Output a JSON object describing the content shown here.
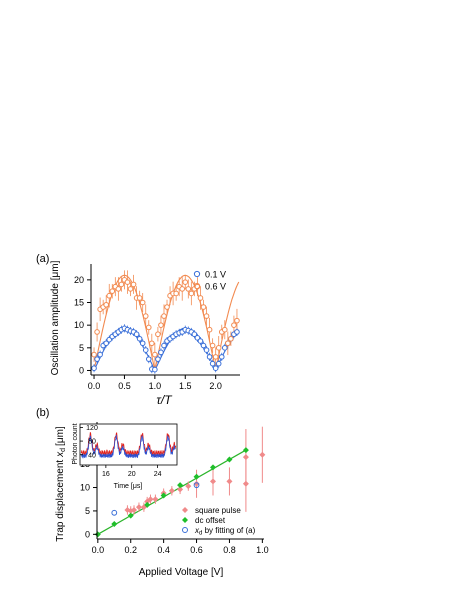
{
  "colors": {
    "blue": "#3a6fd8",
    "orange": "#f28a50",
    "pink": "#f08a8a",
    "green": "#1fbf2a",
    "green_line": "#2bb52b",
    "inset_red": "#e0201a",
    "inset_blue": "#2c4fd0"
  },
  "chart_data": [
    {
      "type": "scatter",
      "panel_label": "(a)",
      "xlabel": "τ/T",
      "ylabel": "Oscillation amplitude [μm]",
      "xlim": [
        -0.05,
        2.4
      ],
      "ylim": [
        -1,
        23.5
      ],
      "xticks": [
        "0.0",
        "0.5",
        "1.0",
        "1.5",
        "2.0"
      ],
      "yticks": [
        "0",
        "5",
        "10",
        "15",
        "20"
      ],
      "legend_position": "top-right",
      "series": [
        {
          "name": "0.1 V",
          "marker": "open-circle",
          "color": "#3a6fd8",
          "x": [
            0.0,
            0.05,
            0.1,
            0.15,
            0.2,
            0.25,
            0.3,
            0.35,
            0.4,
            0.45,
            0.5,
            0.55,
            0.6,
            0.65,
            0.7,
            0.75,
            0.8,
            0.85,
            0.9,
            0.95,
            1.0,
            1.05,
            1.1,
            1.15,
            1.2,
            1.25,
            1.3,
            1.35,
            1.4,
            1.45,
            1.5,
            1.55,
            1.6,
            1.65,
            1.7,
            1.75,
            1.8,
            1.85,
            1.9,
            1.95,
            2.0,
            2.05,
            2.1,
            2.15,
            2.2,
            2.25,
            2.3,
            2.35
          ],
          "y": [
            0.5,
            2.5,
            3.5,
            5.5,
            6.0,
            6.8,
            7.5,
            8.0,
            8.5,
            9.0,
            9.3,
            9.0,
            8.7,
            8.5,
            8.0,
            7.0,
            6.0,
            4.5,
            2.5,
            0.3,
            0.2,
            2.5,
            4.0,
            5.5,
            6.5,
            7.0,
            7.5,
            8.0,
            8.3,
            8.5,
            9.0,
            8.8,
            8.5,
            8.0,
            7.2,
            6.5,
            5.5,
            4.5,
            3.0,
            1.5,
            0.5,
            1.5,
            3.0,
            5.0,
            6.0,
            7.0,
            8.0,
            8.5
          ]
        },
        {
          "name": "0.6 V",
          "marker": "open-circle",
          "color": "#f28a50",
          "x": [
            0.0,
            0.05,
            0.1,
            0.15,
            0.2,
            0.25,
            0.3,
            0.35,
            0.4,
            0.45,
            0.5,
            0.55,
            0.6,
            0.65,
            0.7,
            0.75,
            0.8,
            0.85,
            0.9,
            0.95,
            1.0,
            1.05,
            1.1,
            1.15,
            1.2,
            1.25,
            1.3,
            1.35,
            1.4,
            1.45,
            1.5,
            1.55,
            1.6,
            1.65,
            1.7,
            1.75,
            1.8,
            1.85,
            1.9,
            1.95,
            2.0,
            2.05,
            2.1,
            2.15,
            2.2,
            2.25,
            2.3,
            2.35
          ],
          "y": [
            3.5,
            8.5,
            13.5,
            14.0,
            14.5,
            16.5,
            17.5,
            18.5,
            18.0,
            19.0,
            20.0,
            19.5,
            18.0,
            19.0,
            16.0,
            16.0,
            15.0,
            12.0,
            9.5,
            6.0,
            3.5,
            8.0,
            10.0,
            12.0,
            14.0,
            16.5,
            17.0,
            17.0,
            18.5,
            18.0,
            19.5,
            18.0,
            17.0,
            18.0,
            18.5,
            16.0,
            14.0,
            12.0,
            9.0,
            5.5,
            3.0,
            5.0,
            8.5,
            9.0,
            6.0,
            7.0,
            10.0,
            11.0
          ]
        }
      ]
    },
    {
      "type": "scatter",
      "panel_label": "(b)",
      "xlabel": "Applied Voltage [V]",
      "ylabel": "Trap displacement",
      "ylabel_symbol": "x",
      "ylabel_subscript": "d",
      "ylabel_unit": "[μm]",
      "xlim": [
        -0.005,
        1.01
      ],
      "ylim": [
        -1,
        24
      ],
      "xticks": [
        "0.0",
        "0.2",
        "0.4",
        "0.6",
        "0.8",
        "1.0"
      ],
      "yticks": [
        "0",
        "5",
        "10",
        "15",
        "20"
      ],
      "legend_position": "bottom-right",
      "series": [
        {
          "name": "square pulse",
          "marker": "filled-diamond",
          "color": "#f08a8a",
          "x": [
            0.18,
            0.2,
            0.22,
            0.25,
            0.28,
            0.3,
            0.32,
            0.35,
            0.4,
            0.45,
            0.5,
            0.55,
            0.6,
            0.7,
            0.8,
            0.9,
            0.9,
            1.0
          ],
          "y": [
            5.2,
            5.0,
            5.2,
            5.8,
            5.8,
            7.0,
            7.5,
            7.5,
            8.8,
            9.3,
            9.6,
            10.3,
            10.8,
            11.3,
            11.3,
            10.8,
            16.5,
            17.0
          ]
        },
        {
          "name": "dc offset",
          "marker": "filled-diamond",
          "color": "#1fbf2a",
          "x": [
            0.0,
            0.1,
            0.2,
            0.3,
            0.4,
            0.5,
            0.6,
            0.7,
            0.8,
            0.9
          ],
          "y": [
            0.0,
            2.2,
            4.0,
            6.3,
            8.3,
            10.5,
            12.3,
            14.3,
            16.0,
            18.0
          ],
          "fit": {
            "x": [
              0.0,
              0.9
            ],
            "y": [
              0.0,
              18.0
            ]
          }
        },
        {
          "name": "x_d by fitting of (a)",
          "legend_symbol": "x",
          "legend_subscript": "d",
          "legend_rest": " by fitting of (a)",
          "marker": "open-circle",
          "color": "#3a6fd8",
          "x": [
            0.1,
            0.6
          ],
          "y": [
            4.6,
            10.5
          ]
        }
      ],
      "inset": {
        "xlabel": "Time [μs]",
        "ylabel": "Photon count",
        "xticks": [
          "16",
          "20",
          "24"
        ],
        "yticks": [
          "40",
          "80",
          "120"
        ]
      }
    }
  ]
}
